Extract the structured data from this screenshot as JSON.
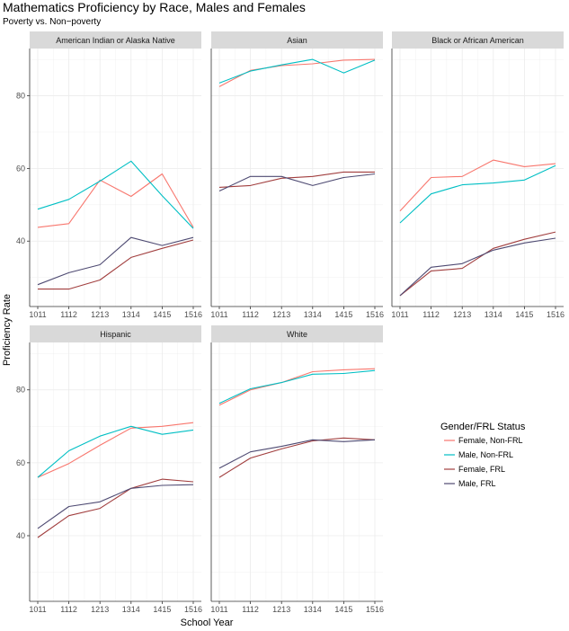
{
  "chart_data": {
    "type": "line",
    "title": "Mathematics Proficiency by Race, Males and Females",
    "subtitle": "Poverty vs. Non−poverty",
    "xlabel": "School Year",
    "ylabel": "Proficiency Rate",
    "x": [
      "1011",
      "1112",
      "1213",
      "1314",
      "1415",
      "1516"
    ],
    "ylim": [
      22,
      93
    ],
    "y_ticks": [
      40,
      60,
      80
    ],
    "grid": true,
    "legend": {
      "title": "Gender/FRL Status",
      "placement": "right",
      "entries": [
        "Female, Non-FRL",
        "Male, Non-FRL",
        "Female, FRL",
        "Male, FRL"
      ]
    },
    "series_colors": {
      "Female, Non-FRL": "#F8766D",
      "Male, Non-FRL": "#00BFC4",
      "Female, FRL": "#A13E3E",
      "Male, FRL": "#4E4A72"
    },
    "panels": [
      {
        "name": "American Indian or Alaska Native",
        "series": [
          {
            "name": "Female, Non-FRL",
            "values": [
              43.8,
              44.8,
              56.8,
              52.3,
              58.5,
              43.8
            ]
          },
          {
            "name": "Male, Non-FRL",
            "values": [
              48.8,
              51.5,
              56.5,
              62.0,
              52.5,
              43.5
            ]
          },
          {
            "name": "Female, FRL",
            "values": [
              26.8,
              26.8,
              29.3,
              35.5,
              38.0,
              40.3
            ]
          },
          {
            "name": "Male, FRL",
            "values": [
              28.0,
              31.3,
              33.5,
              41.0,
              38.8,
              41.0
            ]
          }
        ]
      },
      {
        "name": "Asian",
        "series": [
          {
            "name": "Female, Non-FRL",
            "values": [
              82.5,
              87.0,
              88.3,
              88.8,
              89.8,
              90.0
            ]
          },
          {
            "name": "Male, Non-FRL",
            "values": [
              83.5,
              86.8,
              88.5,
              90.0,
              86.3,
              89.8
            ]
          },
          {
            "name": "Female, FRL",
            "values": [
              54.8,
              55.3,
              57.3,
              57.8,
              59.0,
              59.0
            ]
          },
          {
            "name": "Male, FRL",
            "values": [
              53.8,
              57.8,
              57.8,
              55.3,
              57.5,
              58.5
            ]
          }
        ]
      },
      {
        "name": "Black or African American",
        "series": [
          {
            "name": "Female, Non-FRL",
            "values": [
              48.3,
              57.5,
              57.8,
              62.3,
              60.5,
              61.3
            ]
          },
          {
            "name": "Male, Non-FRL",
            "values": [
              45.0,
              53.0,
              55.5,
              56.0,
              56.8,
              60.8
            ]
          },
          {
            "name": "Female, FRL",
            "values": [
              25.0,
              31.8,
              32.5,
              38.0,
              40.5,
              42.5
            ]
          },
          {
            "name": "Male, FRL",
            "values": [
              25.0,
              32.8,
              33.8,
              37.5,
              39.5,
              40.8
            ]
          }
        ]
      },
      {
        "name": "Hispanic",
        "series": [
          {
            "name": "Female, Non-FRL",
            "values": [
              56.0,
              59.8,
              64.8,
              69.5,
              70.0,
              71.0
            ]
          },
          {
            "name": "Male, Non-FRL",
            "values": [
              56.0,
              63.3,
              67.3,
              70.0,
              67.8,
              69.0
            ]
          },
          {
            "name": "Female, FRL",
            "values": [
              39.5,
              45.5,
              47.5,
              53.0,
              55.5,
              54.8
            ]
          },
          {
            "name": "Male, FRL",
            "values": [
              42.0,
              48.0,
              49.3,
              53.0,
              53.8,
              54.0
            ]
          }
        ]
      },
      {
        "name": "White",
        "series": [
          {
            "name": "Female, Non-FRL",
            "values": [
              75.8,
              80.0,
              82.0,
              85.0,
              85.5,
              85.8
            ]
          },
          {
            "name": "Male, Non-FRL",
            "values": [
              76.3,
              80.3,
              82.0,
              84.3,
              84.5,
              85.3
            ]
          },
          {
            "name": "Female, FRL",
            "values": [
              56.0,
              61.3,
              63.8,
              66.0,
              66.8,
              66.3
            ]
          },
          {
            "name": "Male, FRL",
            "values": [
              58.5,
              63.0,
              64.5,
              66.3,
              65.8,
              66.3
            ]
          }
        ]
      }
    ]
  }
}
